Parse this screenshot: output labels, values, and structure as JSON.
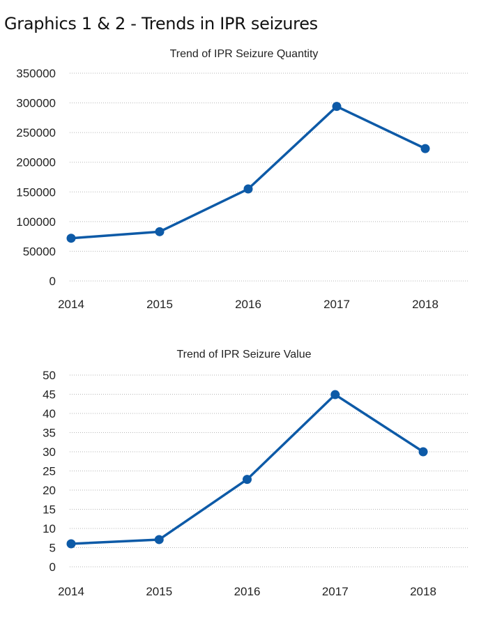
{
  "page": {
    "title": "Graphics 1 & 2 - Trends in IPR seizures"
  },
  "colors": {
    "series": "#0d5aa7"
  },
  "chart_data": [
    {
      "type": "line",
      "title": "Trend of IPR Seizure Quantity",
      "xlabel": "",
      "ylabel": "",
      "categories": [
        "2014",
        "2015",
        "2016",
        "2017",
        "2018"
      ],
      "ylim": [
        0,
        350000
      ],
      "yticks": [
        0,
        50000,
        100000,
        150000,
        200000,
        250000,
        300000,
        350000
      ],
      "ytick_labels": [
        "0",
        "50000",
        "100000",
        "150000",
        "200000",
        "250000",
        "300000",
        "350000"
      ],
      "grid": true,
      "legend": "none",
      "series": [
        {
          "values": [
            72000,
            83000,
            155000,
            294000,
            223000
          ]
        }
      ]
    },
    {
      "type": "line",
      "title": "Trend of IPR Seizure Value",
      "xlabel": "",
      "ylabel": "",
      "categories": [
        "2014",
        "2015",
        "2016",
        "2017",
        "2018"
      ],
      "ylim": [
        0,
        50
      ],
      "yticks": [
        0,
        5,
        10,
        15,
        20,
        25,
        30,
        35,
        40,
        45,
        50
      ],
      "ytick_labels": [
        "0",
        "5",
        "10",
        "15",
        "20",
        "25",
        "30",
        "35",
        "40",
        "45",
        "50"
      ],
      "grid": true,
      "legend": "none",
      "series": [
        {
          "values": [
            6,
            7.1,
            22.8,
            44.9,
            30
          ]
        }
      ]
    }
  ]
}
